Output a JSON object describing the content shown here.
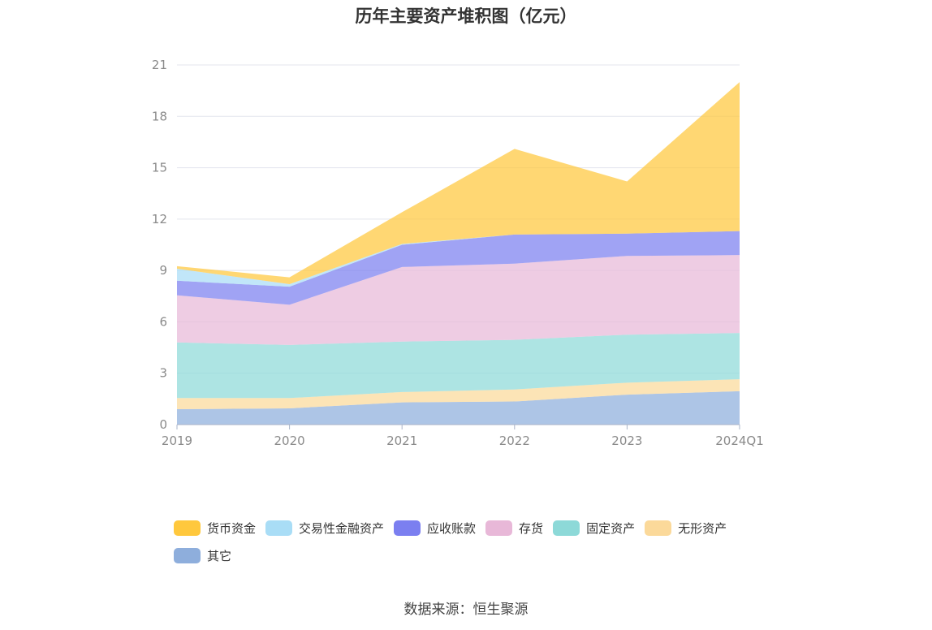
{
  "chart_data": {
    "type": "area",
    "stacked": true,
    "title": "历年主要资产堆积图（亿元）",
    "categories": [
      "2019",
      "2020",
      "2021",
      "2022",
      "2023",
      "2024Q1"
    ],
    "ylim": [
      0,
      21
    ],
    "yticks": [
      0,
      3,
      6,
      9,
      12,
      15,
      18,
      21
    ],
    "grid": true,
    "legend_position": "bottom",
    "series": [
      {
        "name": "其它",
        "values": [
          0.9,
          0.95,
          1.3,
          1.35,
          1.75,
          1.95
        ],
        "color": "#8eaedc"
      },
      {
        "name": "无形资产",
        "values": [
          0.65,
          0.6,
          0.6,
          0.7,
          0.7,
          0.7
        ],
        "color": "#fbd99a"
      },
      {
        "name": "固定资产",
        "values": [
          3.25,
          3.1,
          2.95,
          2.9,
          2.8,
          2.7
        ],
        "color": "#8dd9d8"
      },
      {
        "name": "存货",
        "values": [
          2.75,
          2.35,
          4.35,
          4.45,
          4.6,
          4.55
        ],
        "color": "#e8b8d8"
      },
      {
        "name": "应收账款",
        "values": [
          0.85,
          1.05,
          1.3,
          1.7,
          1.3,
          1.4
        ],
        "color": "#7b7ff0"
      },
      {
        "name": "交易性金融资产",
        "values": [
          0.7,
          0.15,
          0.05,
          0.0,
          0.0,
          0.0
        ],
        "color": "#a9ddf6"
      },
      {
        "name": "货币资金",
        "values": [
          0.15,
          0.4,
          1.85,
          5.0,
          3.05,
          8.7
        ],
        "color": "#ffc83d"
      }
    ],
    "legend_order": [
      "货币资金",
      "交易性金融资产",
      "应收账款",
      "存货",
      "固定资产",
      "无形资产",
      "其它"
    ]
  },
  "source": "数据来源：恒生聚源"
}
